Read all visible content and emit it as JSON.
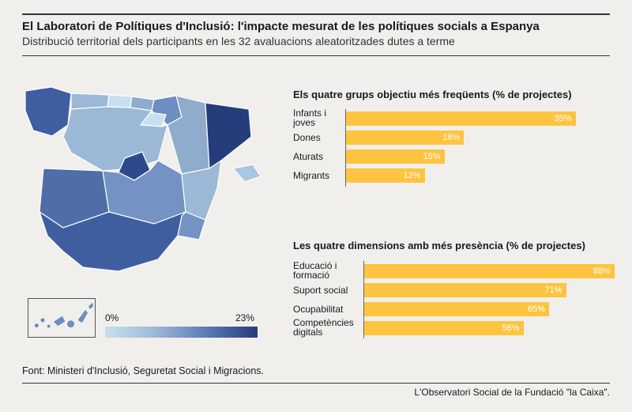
{
  "header": {
    "title": "El Laboratori de Polítiques d'Inclusió: l'impacte mesurat de les polítiques socials a Espanya",
    "subtitle": "Distribució territorial dels participants en les 32 avaluacions aleatoritzades dutes a terme"
  },
  "legend": {
    "min_label": "0%",
    "max_label": "23%"
  },
  "colors": {
    "bar": "#fdc43f",
    "scale_light": "#c8dff0",
    "scale_dark": "#253d7a",
    "background": "#f0efeb"
  },
  "chart_data": [
    {
      "type": "bar",
      "orientation": "horizontal",
      "title": "Els quatre grups objectiu més freqüents (% de projectes)",
      "categories": [
        "Infants i joves",
        "Dones",
        "Aturats",
        "Migrants"
      ],
      "values": [
        35,
        18,
        15,
        12
      ],
      "value_labels": [
        "35%",
        "18%",
        "15%",
        "12%"
      ],
      "unit": "%"
    },
    {
      "type": "bar",
      "orientation": "horizontal",
      "title": "Les quatre dimensions amb més presència (% de projectes)",
      "categories": [
        "Educació i formació",
        "Suport social",
        "Ocupabilitat",
        "Competències digitals"
      ],
      "values": [
        88,
        71,
        65,
        56
      ],
      "value_labels": [
        "88%",
        "71%",
        "65%",
        "56%"
      ],
      "unit": "%"
    }
  ],
  "footer": {
    "source": "Font: Ministeri d'Inclusió, Seguretat Social i Migracions.",
    "credit": "L'Observatori Social de la Fundació \"la Caixa\"."
  }
}
